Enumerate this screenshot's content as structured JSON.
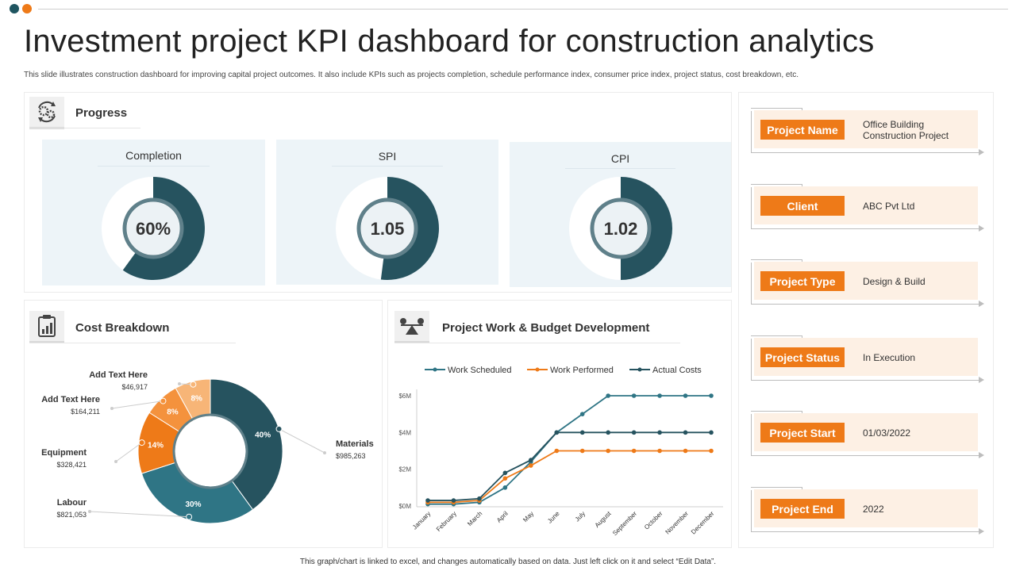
{
  "header": {
    "title": "Investment project KPI dashboard for construction analytics",
    "subtitle": "This slide illustrates construction dashboard for improving capital project outcomes. It also include KPIs  such as projects completion, schedule performance index, consumer price index, project status, cost breakdown, etc.",
    "dot_colors": [
      "#1f5560",
      "#ee7a18"
    ]
  },
  "progress": {
    "title": "Progress",
    "icon": "gears-cycle-icon",
    "kpis": [
      {
        "label": "Completion",
        "display": "60%",
        "fraction": 0.6
      },
      {
        "label": "SPI",
        "display": "1.05",
        "fraction": 0.52
      },
      {
        "label": "CPI",
        "display": "1.02",
        "fraction": 0.5
      }
    ]
  },
  "cost_breakdown": {
    "title": "Cost Breakdown",
    "icon": "clipboard-chart-icon"
  },
  "budget": {
    "title": "Project Work & Budget Development",
    "icon": "scale-money-icon"
  },
  "project_info": [
    {
      "label": "Project Name",
      "value": "Office Building Construction Project"
    },
    {
      "label": "Client",
      "value": "ABC Pvt Ltd"
    },
    {
      "label": "Project Type",
      "value": "Design & Build"
    },
    {
      "label": "Project Status",
      "value": "In Execution"
    },
    {
      "label": "Project Start",
      "value": "01/03/2022"
    },
    {
      "label": "Project End",
      "value": "2022"
    }
  ],
  "footer": "This graph/chart is linked to excel, and changes automatically based on data. Just left click on it and select “Edit Data”.",
  "colors": {
    "dark_teal": "#26535f",
    "teal": "#2f7585",
    "orange": "#ee7a18",
    "orange_mid": "#f4923d",
    "orange_light": "#f7b577",
    "card_bg": "#fdf0e4",
    "kpi_bg": "#edf4f8"
  },
  "chart_data": [
    {
      "type": "pie",
      "title": "Cost Breakdown",
      "slices": [
        {
          "name": "Materials",
          "value": 40,
          "label": "40%",
          "amount": "$985,263",
          "color": "#26535f"
        },
        {
          "name": "Labour",
          "value": 30,
          "label": "30%",
          "amount": "$821,053",
          "color": "#2f7585"
        },
        {
          "name": "Equipment",
          "value": 14,
          "label": "14%",
          "amount": "$328,421",
          "color": "#ee7a18"
        },
        {
          "name": "Add Text Here",
          "value": 8,
          "label": "8%",
          "amount": "$164,211",
          "color": "#f4923d"
        },
        {
          "name": "Add Text Here",
          "value": 8,
          "label": "8%",
          "amount": "$46,917",
          "color": "#f7b577"
        }
      ]
    },
    {
      "type": "line",
      "title": "Project Work & Budget Development",
      "categories": [
        "January",
        "February",
        "March",
        "April",
        "May",
        "June",
        "July",
        "August",
        "September",
        "October",
        "November",
        "December"
      ],
      "y_ticks": [
        "$0M",
        "$2M",
        "$4M",
        "$6M"
      ],
      "ylim": [
        0,
        6
      ],
      "series": [
        {
          "name": "Work Scheduled",
          "color": "#2f7585",
          "values": [
            0.1,
            0.1,
            0.2,
            1.0,
            2.4,
            4.0,
            5.0,
            6.0,
            6.0,
            6.0,
            6.0,
            6.0
          ]
        },
        {
          "name": "Work Performed",
          "color": "#ee7a18",
          "values": [
            0.2,
            0.2,
            0.3,
            1.5,
            2.2,
            3.0,
            3.0,
            3.0,
            3.0,
            3.0,
            3.0,
            3.0
          ]
        },
        {
          "name": "Actual Costs",
          "color": "#26535f",
          "values": [
            0.3,
            0.3,
            0.4,
            1.8,
            2.5,
            4.0,
            4.0,
            4.0,
            4.0,
            4.0,
            4.0,
            4.0
          ]
        }
      ]
    }
  ]
}
